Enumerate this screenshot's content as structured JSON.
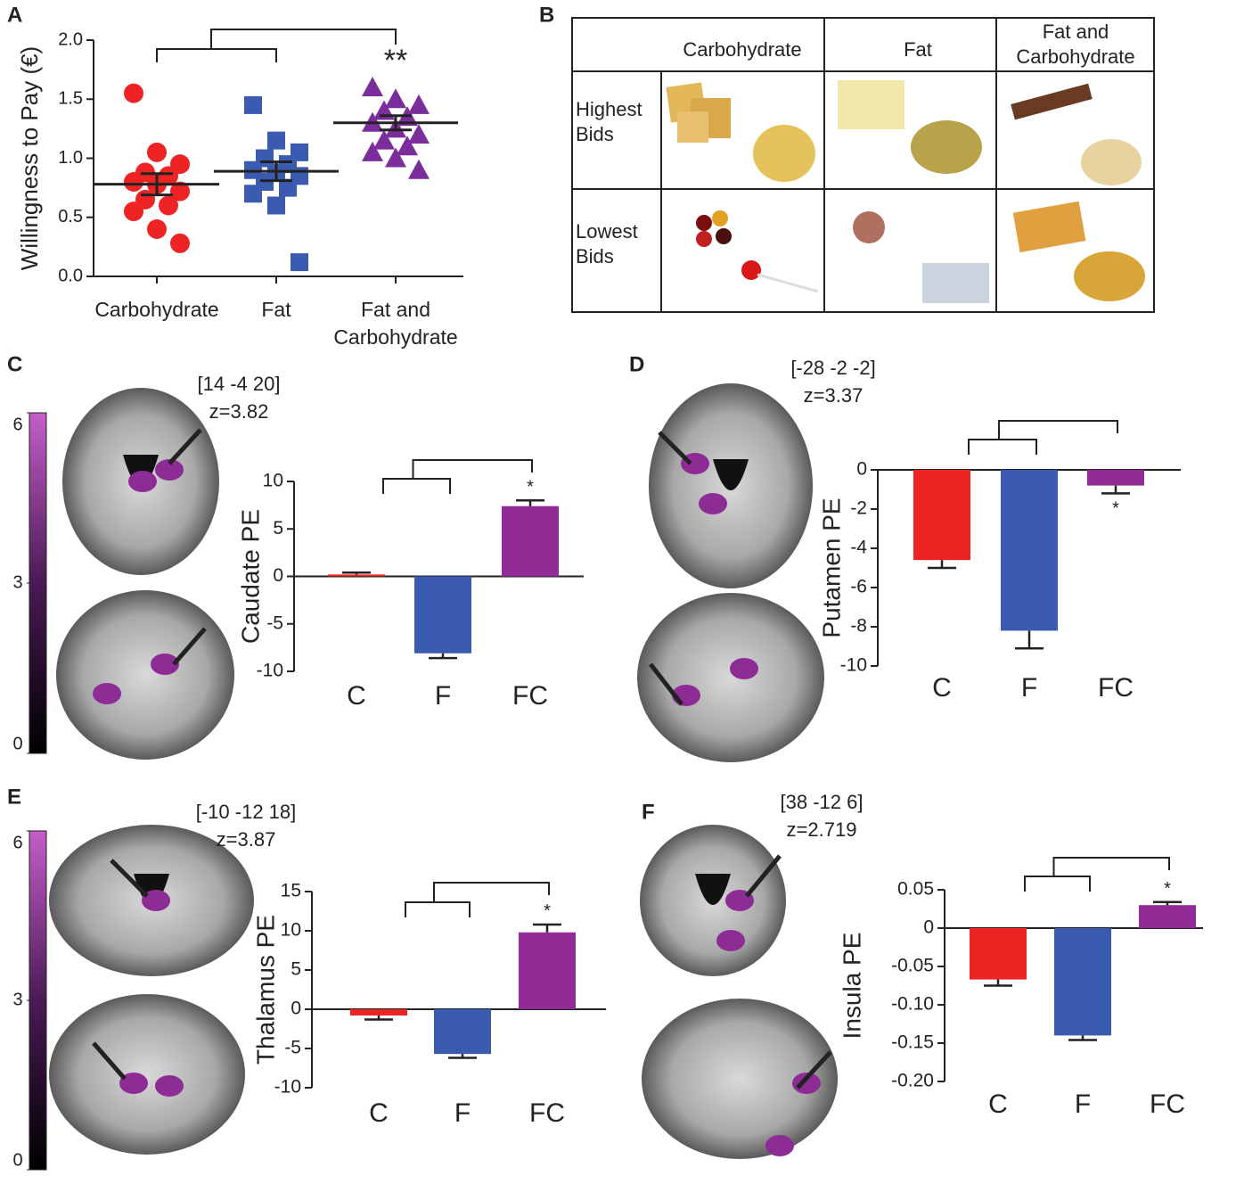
{
  "table": {
    "label": "B",
    "columns": [
      "Carbohydrate",
      "Fat",
      "Fat and Carbohydrate"
    ],
    "rows": [
      "Highest Bids",
      "Lowest Bids"
    ]
  },
  "chart_data": [
    {
      "type": "scatter",
      "label": "A",
      "ylabel": "Willingness to Pay (€)",
      "categories": [
        "Carbohydrate",
        "Fat",
        "Fat and Carbohydrate"
      ],
      "series": [
        {
          "color": "#ee2424",
          "marker": "circle",
          "values": [
            1.55,
            1.05,
            0.95,
            0.88,
            0.85,
            0.8,
            0.78,
            0.72,
            0.65,
            0.6,
            0.55,
            0.4,
            0.28
          ],
          "mean": 0.78,
          "sem": 0.09
        },
        {
          "color": "#3a5bb0",
          "marker": "square",
          "values": [
            1.45,
            1.15,
            1.05,
            1.0,
            0.95,
            0.9,
            0.88,
            0.85,
            0.8,
            0.75,
            0.7,
            0.6,
            0.12
          ],
          "mean": 0.89,
          "sem": 0.08
        },
        {
          "color": "#7b2d9c",
          "marker": "triangle",
          "values": [
            1.6,
            1.5,
            1.45,
            1.4,
            1.35,
            1.3,
            1.25,
            1.2,
            1.15,
            1.1,
            1.05,
            1.0,
            0.9
          ],
          "mean": 1.3,
          "sem": 0.06
        }
      ],
      "significance": "**",
      "ylim": [
        0,
        2
      ],
      "yticks": [
        {
          "value": 0,
          "label": "0.0"
        },
        0.5,
        {
          "value": 1,
          "label": "1.0"
        },
        1.5,
        {
          "value": 2,
          "label": "2.0"
        }
      ]
    },
    {
      "type": "bar",
      "label": "C",
      "ylabel": "Caudate  PE",
      "categories": [
        "C",
        "F",
        "FC"
      ],
      "values": [
        0.2,
        -8.1,
        7.4
      ],
      "errors": [
        0.2,
        0.5,
        0.6
      ],
      "colors": [
        "#ee2424",
        "#3a5bb0",
        "#912b96"
      ],
      "significance": "*",
      "ylim": [
        -10,
        10
      ],
      "yticks": [
        -10,
        -5,
        0,
        5,
        10
      ],
      "brain": {
        "coords": "[14 -4 20]",
        "z": "z=3.82"
      },
      "colorbar": {
        "lim": [
          0,
          6
        ],
        "ticks": [
          0,
          3,
          6
        ]
      }
    },
    {
      "type": "bar",
      "label": "D",
      "ylabel": "Putamen  PE",
      "categories": [
        "C",
        "F",
        "FC"
      ],
      "values": [
        -4.6,
        -8.2,
        -0.8
      ],
      "errors": [
        0.4,
        0.9,
        0.4
      ],
      "colors": [
        "#ee2424",
        "#3a5bb0",
        "#912b96"
      ],
      "significance": "*",
      "ylim": [
        -10,
        0
      ],
      "yticks": [
        -10,
        -8,
        -6,
        -4,
        -2,
        0
      ],
      "brain": {
        "coords": "[-28 -2 -2]",
        "z": "z=3.37"
      }
    },
    {
      "type": "bar",
      "label": "E",
      "ylabel": "Thalamus PE",
      "categories": [
        "C",
        "F",
        "FC"
      ],
      "values": [
        -0.8,
        -5.7,
        9.8
      ],
      "errors": [
        0.5,
        0.5,
        1.0
      ],
      "colors": [
        "#ee2424",
        "#3a5bb0",
        "#912b96"
      ],
      "significance": "*",
      "ylim": [
        -10,
        15
      ],
      "yticks": [
        -10,
        -5,
        0,
        5,
        10,
        15
      ],
      "brain": {
        "coords": "[-10 -12 18]",
        "z": "z=3.87"
      },
      "colorbar": {
        "lim": [
          0,
          6
        ],
        "ticks": [
          0,
          3,
          6
        ]
      }
    },
    {
      "type": "bar",
      "label": "F",
      "ylabel": "Insula PE",
      "categories": [
        "C",
        "F",
        "FC"
      ],
      "values": [
        -0.067,
        -0.14,
        0.03
      ],
      "errors": [
        0.008,
        0.006,
        0.004
      ],
      "colors": [
        "#ee2424",
        "#3a5bb0",
        "#912b96"
      ],
      "significance": "*",
      "ylim": [
        -0.2,
        0.05
      ],
      "yticks": [
        {
          "value": -0.2,
          "label": "-0.20"
        },
        -0.15,
        {
          "value": -0.1,
          "label": "-0.10"
        },
        -0.05,
        0,
        0.05
      ],
      "brain": {
        "coords": "[38 -12 6]",
        "z": "z=2.719"
      }
    }
  ]
}
